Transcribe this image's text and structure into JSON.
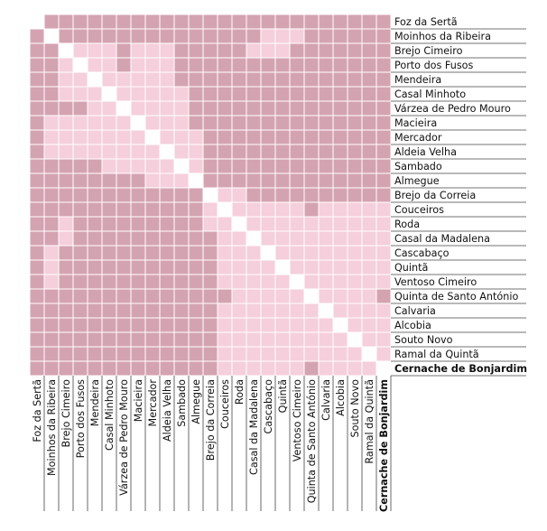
{
  "chart_data": {
    "type": "heatmap",
    "labels": [
      "Foz da Sertã",
      "Moinhos da Ribeira",
      "Brejo Cimeiro",
      "Porto dos Fusos",
      "Mendeira",
      "Casal Minhoto",
      "Várzea de Pedro Mouro",
      "Macieira",
      "Mercador",
      "Aldeia Velha",
      "Sambado",
      "Almegue",
      "Brejo da Correia",
      "Couceiros",
      "Roda",
      "Casal da Madalena",
      "Cascabaço",
      "Quintã",
      "Ventoso Cimeiro",
      "Quinta de Santo António",
      "Calvaria",
      "Alcobia",
      "Souto Novo",
      "Ramal da Quintã",
      "Cernache de Bonjardim"
    ],
    "highlighted_label": "Cernache de Bonjardim",
    "levels": {
      "0": "none (diagonal)",
      "1": "light",
      "2": "dark"
    },
    "colors": {
      "0": "#ffffff",
      "1": "#f5cfdc",
      "2": "#d4a3b2",
      "grid": "#ffffff"
    },
    "matrix": [
      [
        0,
        2,
        2,
        2,
        2,
        2,
        2,
        2,
        2,
        2,
        2,
        2,
        2,
        2,
        2,
        2,
        2,
        2,
        2,
        2,
        2,
        2,
        2,
        2,
        2
      ],
      [
        2,
        0,
        2,
        2,
        2,
        2,
        2,
        2,
        2,
        2,
        2,
        2,
        2,
        2,
        2,
        2,
        1,
        1,
        1,
        2,
        2,
        2,
        2,
        2,
        2
      ],
      [
        2,
        2,
        0,
        1,
        1,
        1,
        2,
        1,
        1,
        1,
        2,
        2,
        2,
        2,
        2,
        1,
        1,
        1,
        2,
        2,
        2,
        2,
        2,
        2,
        2
      ],
      [
        2,
        2,
        1,
        0,
        1,
        1,
        2,
        1,
        1,
        1,
        2,
        2,
        2,
        2,
        2,
        2,
        2,
        2,
        2,
        2,
        2,
        2,
        2,
        2,
        2
      ],
      [
        2,
        2,
        1,
        1,
        0,
        1,
        1,
        1,
        1,
        1,
        2,
        2,
        2,
        2,
        2,
        2,
        2,
        2,
        2,
        2,
        2,
        2,
        2,
        2,
        2
      ],
      [
        2,
        2,
        1,
        1,
        1,
        0,
        1,
        1,
        1,
        1,
        1,
        2,
        2,
        2,
        2,
        2,
        2,
        2,
        2,
        2,
        2,
        2,
        2,
        2,
        2
      ],
      [
        2,
        2,
        2,
        2,
        1,
        1,
        0,
        1,
        1,
        1,
        1,
        2,
        2,
        2,
        2,
        2,
        2,
        2,
        2,
        2,
        2,
        2,
        2,
        2,
        2
      ],
      [
        2,
        1,
        1,
        1,
        1,
        1,
        1,
        0,
        1,
        1,
        1,
        2,
        2,
        2,
        2,
        2,
        2,
        2,
        2,
        2,
        2,
        2,
        2,
        2,
        2
      ],
      [
        2,
        1,
        1,
        1,
        1,
        1,
        1,
        1,
        0,
        1,
        1,
        1,
        2,
        2,
        2,
        2,
        2,
        2,
        2,
        2,
        2,
        2,
        2,
        2,
        2
      ],
      [
        2,
        1,
        1,
        1,
        1,
        1,
        1,
        1,
        1,
        0,
        1,
        1,
        2,
        2,
        2,
        2,
        2,
        2,
        2,
        2,
        2,
        2,
        2,
        2,
        2
      ],
      [
        2,
        2,
        2,
        2,
        2,
        1,
        1,
        1,
        1,
        1,
        0,
        1,
        2,
        2,
        2,
        2,
        2,
        2,
        2,
        2,
        2,
        2,
        2,
        2,
        2
      ],
      [
        2,
        2,
        2,
        2,
        2,
        2,
        2,
        2,
        1,
        1,
        1,
        0,
        2,
        2,
        2,
        2,
        2,
        2,
        2,
        2,
        2,
        2,
        2,
        2,
        2
      ],
      [
        2,
        2,
        2,
        2,
        2,
        2,
        2,
        2,
        2,
        2,
        2,
        2,
        0,
        1,
        1,
        2,
        2,
        2,
        2,
        2,
        2,
        2,
        2,
        2,
        2
      ],
      [
        2,
        2,
        2,
        2,
        2,
        2,
        2,
        2,
        2,
        2,
        2,
        2,
        1,
        0,
        1,
        1,
        1,
        1,
        1,
        2,
        1,
        1,
        1,
        1,
        1
      ],
      [
        2,
        2,
        1,
        2,
        2,
        2,
        2,
        2,
        2,
        2,
        2,
        2,
        1,
        1,
        0,
        1,
        1,
        1,
        1,
        1,
        1,
        1,
        1,
        1,
        1
      ],
      [
        2,
        2,
        1,
        2,
        2,
        2,
        2,
        2,
        2,
        2,
        2,
        2,
        2,
        1,
        1,
        0,
        1,
        1,
        1,
        1,
        1,
        1,
        1,
        1,
        1
      ],
      [
        2,
        1,
        2,
        2,
        2,
        2,
        2,
        2,
        2,
        2,
        2,
        2,
        2,
        1,
        1,
        1,
        0,
        1,
        1,
        1,
        1,
        1,
        1,
        1,
        1
      ],
      [
        2,
        1,
        2,
        2,
        2,
        2,
        2,
        2,
        2,
        2,
        2,
        2,
        2,
        1,
        1,
        1,
        1,
        0,
        1,
        1,
        1,
        1,
        1,
        1,
        1
      ],
      [
        2,
        1,
        2,
        2,
        2,
        2,
        2,
        2,
        2,
        2,
        2,
        2,
        2,
        1,
        1,
        1,
        1,
        1,
        0,
        1,
        1,
        1,
        1,
        1,
        1
      ],
      [
        2,
        2,
        2,
        2,
        2,
        2,
        2,
        2,
        2,
        2,
        2,
        2,
        2,
        2,
        1,
        1,
        1,
        1,
        1,
        0,
        1,
        1,
        1,
        1,
        2
      ],
      [
        2,
        2,
        2,
        2,
        2,
        2,
        2,
        2,
        2,
        2,
        2,
        2,
        2,
        1,
        1,
        1,
        1,
        1,
        1,
        1,
        0,
        1,
        1,
        1,
        1
      ],
      [
        2,
        2,
        2,
        2,
        2,
        2,
        2,
        2,
        2,
        2,
        2,
        2,
        2,
        1,
        1,
        1,
        1,
        1,
        1,
        1,
        1,
        0,
        1,
        1,
        1
      ],
      [
        2,
        2,
        2,
        2,
        2,
        2,
        2,
        2,
        2,
        2,
        2,
        2,
        2,
        1,
        1,
        1,
        1,
        1,
        1,
        1,
        1,
        1,
        0,
        1,
        1
      ],
      [
        2,
        2,
        2,
        2,
        2,
        2,
        2,
        2,
        2,
        2,
        2,
        2,
        2,
        1,
        1,
        1,
        1,
        1,
        1,
        1,
        1,
        1,
        1,
        0,
        1
      ],
      [
        2,
        2,
        2,
        2,
        2,
        2,
        2,
        2,
        2,
        2,
        2,
        2,
        2,
        1,
        1,
        1,
        1,
        1,
        1,
        2,
        1,
        1,
        1,
        1,
        0
      ]
    ]
  }
}
